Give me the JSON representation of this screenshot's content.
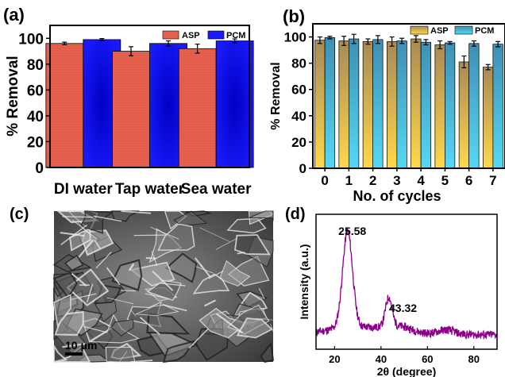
{
  "panels": {
    "a": {
      "letter": "(a)"
    },
    "b": {
      "letter": "(b)"
    },
    "c": {
      "letter": "(c)",
      "scale_bar": "10 μm"
    },
    "d": {
      "letter": "(d)"
    }
  },
  "colors": {
    "asp": "#e8604e",
    "pcm": "#1a1aff",
    "asp_b_top": "#a88a55",
    "asp_b_bottom": "#ffd84a",
    "pcm_b_top": "#3f8fb3",
    "pcm_b_bottom": "#55d8f5",
    "xrd_line": "#8b008b"
  },
  "chart_data": [
    {
      "panel": "a",
      "type": "bar",
      "title": "",
      "xlabel": "",
      "ylabel": "% Removal",
      "ylim": [
        0,
        110
      ],
      "yticks": [
        0,
        20,
        40,
        60,
        80,
        100
      ],
      "categories": [
        "DI water",
        "Tap water",
        "Sea water"
      ],
      "series": [
        {
          "name": "ASP",
          "values": [
            96,
            90,
            92
          ],
          "errors": [
            1,
            3.5,
            3.5
          ]
        },
        {
          "name": "PCM",
          "values": [
            99,
            96,
            98
          ],
          "errors": [
            0.8,
            2,
            1.5
          ]
        }
      ],
      "legend": "top-right"
    },
    {
      "panel": "b",
      "type": "bar",
      "title": "",
      "xlabel": "No. of cycles",
      "ylabel": "% Removal",
      "ylim": [
        0,
        110
      ],
      "yticks": [
        0,
        20,
        40,
        60,
        80,
        100
      ],
      "categories": [
        "0",
        "1",
        "2",
        "3",
        "4",
        "5",
        "6",
        "7"
      ],
      "series": [
        {
          "name": "ASP",
          "values": [
            97.5,
            97,
            96.5,
            96.5,
            98.5,
            94,
            81,
            77
          ],
          "errors": [
            2.5,
            3.5,
            2,
            3.5,
            2.5,
            3,
            4.5,
            2
          ]
        },
        {
          "name": "PCM",
          "values": [
            99.5,
            98.5,
            98,
            97,
            96,
            95.5,
            95,
            94.5
          ],
          "errors": [
            1,
            3.5,
            3,
            2,
            2,
            1,
            2,
            2
          ]
        }
      ],
      "legend": "top-right"
    },
    {
      "panel": "d",
      "type": "line",
      "title": "",
      "xlabel": "2θ (degree)",
      "ylabel": "Intensity (a.u.)",
      "xlim": [
        12,
        90
      ],
      "xticks": [
        20,
        40,
        60,
        80
      ],
      "y_ticks_shown": false,
      "annotations": [
        {
          "text": "25.58",
          "x": 25.58
        },
        {
          "text": "43.32",
          "x": 43.32
        }
      ],
      "peaks": [
        {
          "center": 25.58,
          "relative_height": 1.0,
          "width": 3.0
        },
        {
          "center": 43.32,
          "relative_height": 0.3,
          "width": 2.0
        }
      ]
    }
  ]
}
